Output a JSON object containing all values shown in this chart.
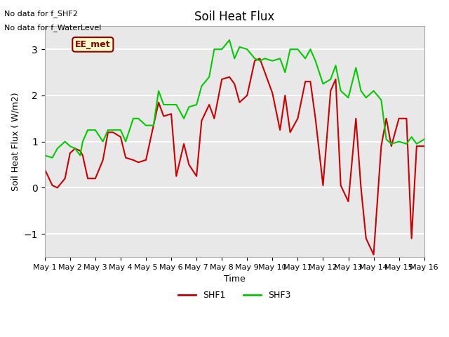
{
  "title": "Soil Heat Flux",
  "xlabel": "Time",
  "ylabel": "Soil Heat Flux ( W/m2)",
  "ylim": [
    -1.5,
    3.5
  ],
  "bg_color": "#e8e8e8",
  "grid_color": "white",
  "no_data_line1": "No data for f_SHF2",
  "no_data_line2": "No data for f_WaterLevel",
  "ee_met_label": "EE_met",
  "legend_entries": [
    "SHF1",
    "SHF3"
  ],
  "legend_colors": [
    "#cc0000",
    "#00cc00"
  ],
  "x_tick_labels": [
    "May 1",
    "May 2",
    "May 3",
    "May 4",
    "May 5",
    "May 6",
    "May 7",
    "May 8",
    "May 9",
    "May 10",
    "May 11",
    "May 12",
    "May 13",
    "May 14",
    "May 15",
    "May 16"
  ],
  "shf1_x": [
    0,
    0.3,
    0.5,
    0.8,
    1.0,
    1.2,
    1.4,
    1.5,
    1.7,
    2.0,
    2.3,
    2.5,
    2.7,
    3.0,
    3.2,
    3.5,
    3.7,
    4.0,
    4.3,
    4.5,
    4.7,
    5.0,
    5.2,
    5.5,
    5.7,
    6.0,
    6.2,
    6.5,
    6.7,
    7.0,
    7.3,
    7.5,
    7.7,
    8.0,
    8.3,
    8.5,
    8.7,
    9.0,
    9.3,
    9.5,
    9.7,
    10.0,
    10.3,
    10.5,
    10.7,
    11.0,
    11.3,
    11.5,
    11.7,
    12.0,
    12.3,
    12.5,
    12.7,
    13.0,
    13.3,
    13.5,
    13.7,
    14.0,
    14.3,
    14.5,
    14.7,
    15.0
  ],
  "shf1_y": [
    0.4,
    0.05,
    0.0,
    0.2,
    0.75,
    0.85,
    0.8,
    0.7,
    0.2,
    0.2,
    0.6,
    1.2,
    1.2,
    1.1,
    0.65,
    0.6,
    0.55,
    0.6,
    1.35,
    1.85,
    1.55,
    1.6,
    0.25,
    0.95,
    0.5,
    0.25,
    1.45,
    1.8,
    1.5,
    2.35,
    2.4,
    2.25,
    1.85,
    2.0,
    2.75,
    2.8,
    2.5,
    2.05,
    1.25,
    2.0,
    1.2,
    1.5,
    2.3,
    2.3,
    1.5,
    0.05,
    2.1,
    2.35,
    0.05,
    -0.3,
    1.5,
    0.0,
    -1.1,
    -1.45,
    0.9,
    1.5,
    0.9,
    1.5,
    1.5,
    -1.1,
    0.9,
    0.9
  ],
  "shf3_x": [
    0,
    0.3,
    0.5,
    0.8,
    1.0,
    1.2,
    1.4,
    1.5,
    1.7,
    2.0,
    2.3,
    2.5,
    2.7,
    3.0,
    3.2,
    3.5,
    3.7,
    4.0,
    4.3,
    4.5,
    4.7,
    5.0,
    5.2,
    5.5,
    5.7,
    6.0,
    6.2,
    6.5,
    6.7,
    7.0,
    7.3,
    7.5,
    7.7,
    8.0,
    8.3,
    8.5,
    8.7,
    9.0,
    9.3,
    9.5,
    9.7,
    10.0,
    10.3,
    10.5,
    10.7,
    11.0,
    11.3,
    11.5,
    11.7,
    12.0,
    12.3,
    12.5,
    12.7,
    13.0,
    13.3,
    13.5,
    13.7,
    14.0,
    14.3,
    14.5,
    14.7,
    15.0
  ],
  "shf3_y": [
    0.7,
    0.65,
    0.85,
    1.0,
    0.9,
    0.85,
    0.7,
    1.0,
    1.25,
    1.25,
    1.0,
    1.25,
    1.25,
    1.25,
    1.0,
    1.5,
    1.5,
    1.35,
    1.35,
    2.1,
    1.8,
    1.8,
    1.8,
    1.5,
    1.75,
    1.8,
    2.2,
    2.4,
    3.0,
    3.0,
    3.2,
    2.8,
    3.05,
    3.0,
    2.8,
    2.75,
    2.8,
    2.75,
    2.8,
    2.5,
    3.0,
    3.0,
    2.8,
    3.0,
    2.75,
    2.25,
    2.35,
    2.65,
    2.1,
    1.95,
    2.6,
    2.1,
    1.95,
    2.1,
    1.9,
    1.05,
    0.95,
    1.0,
    0.95,
    1.1,
    0.95,
    1.05
  ]
}
